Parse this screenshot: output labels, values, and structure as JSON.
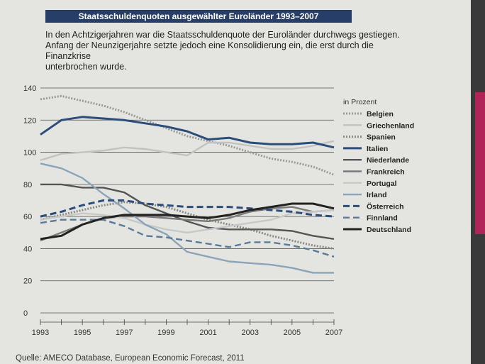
{
  "title": "Staatsschuldenquoten ausgewählter Euroländer 1993–2007",
  "subtitle_lines": [
    "In den Achtzigerjahren war die Staatsschuldenquote der Euroländer durchwegs gestiegen.",
    "Anfang der Neunzigerjahre setzte jedoch eine Konsolidierung ein, die erst durch die Finanzkrise",
    "unterbrochen wurde."
  ],
  "source": "Quelle: AMECO Database, European Economic Forecast, 2011",
  "chart_data": {
    "type": "line",
    "x": [
      1993,
      1994,
      1995,
      1996,
      1997,
      1998,
      1999,
      2000,
      2001,
      2002,
      2003,
      2004,
      2005,
      2006,
      2007
    ],
    "xticks": [
      "1993",
      "1995",
      "1997",
      "1999",
      "2001",
      "2003",
      "2005",
      "2007"
    ],
    "yticks": [
      "0",
      "20",
      "40",
      "60",
      "80",
      "100",
      "120",
      "140"
    ],
    "ylim": [
      0,
      140
    ],
    "legend_title": "in Prozent",
    "series": [
      {
        "name": "Belgien",
        "color": "#9a9a9a",
        "style": "dotted",
        "values": [
          133,
          135,
          132,
          129,
          125,
          120,
          115,
          110,
          107,
          104,
          100,
          96,
          94,
          91,
          86
        ]
      },
      {
        "name": "Griechenland",
        "color": "#c2c2c2",
        "style": "solid",
        "values": [
          95,
          99,
          100,
          101,
          103,
          102,
          100,
          98,
          106,
          106,
          104,
          102,
          102,
          104,
          107
        ]
      },
      {
        "name": "Spanien",
        "color": "#8a8a8a",
        "style": "dotted",
        "values": [
          58,
          61,
          64,
          67,
          69,
          68,
          66,
          62,
          58,
          55,
          52,
          48,
          45,
          42,
          40
        ]
      },
      {
        "name": "Italien",
        "color": "#2a4d7a",
        "style": "solid",
        "values": [
          111,
          120,
          122,
          121,
          120,
          118,
          116,
          113,
          108,
          109,
          106,
          105,
          105,
          106,
          103
        ]
      },
      {
        "name": "Niederlande",
        "color": "#555555",
        "style": "solid",
        "values": [
          80,
          80,
          78,
          78,
          75,
          67,
          62,
          57,
          53,
          52,
          52,
          52,
          51,
          48,
          46
        ]
      },
      {
        "name": "Frankreich",
        "color": "#7a7a7a",
        "style": "solid",
        "values": [
          45,
          50,
          55,
          59,
          60,
          60,
          59,
          58,
          57,
          59,
          63,
          65,
          66,
          63,
          64
        ]
      },
      {
        "name": "Portugal",
        "color": "#c8c8c8",
        "style": "solid",
        "values": [
          58,
          60,
          62,
          61,
          59,
          55,
          52,
          50,
          52,
          54,
          56,
          58,
          62,
          63,
          64
        ]
      },
      {
        "name": "Irland",
        "color": "#8aa4b8",
        "style": "solid",
        "values": [
          93,
          90,
          84,
          74,
          65,
          55,
          49,
          38,
          35,
          32,
          31,
          30,
          28,
          25,
          25
        ]
      },
      {
        "name": "Österreich",
        "color": "#2a4d7a",
        "style": "dashed",
        "values": [
          60,
          63,
          67,
          70,
          70,
          68,
          67,
          66,
          66,
          66,
          65,
          64,
          63,
          61,
          60
        ]
      },
      {
        "name": "Finnland",
        "color": "#5a7a98",
        "style": "dashed",
        "values": [
          56,
          58,
          58,
          58,
          54,
          48,
          47,
          45,
          43,
          41,
          44,
          44,
          42,
          39,
          35
        ]
      },
      {
        "name": "Deutschland",
        "color": "#222222",
        "style": "solid",
        "values": [
          46,
          48,
          55,
          59,
          61,
          61,
          61,
          60,
          59,
          61,
          64,
          66,
          68,
          68,
          65
        ]
      }
    ]
  }
}
